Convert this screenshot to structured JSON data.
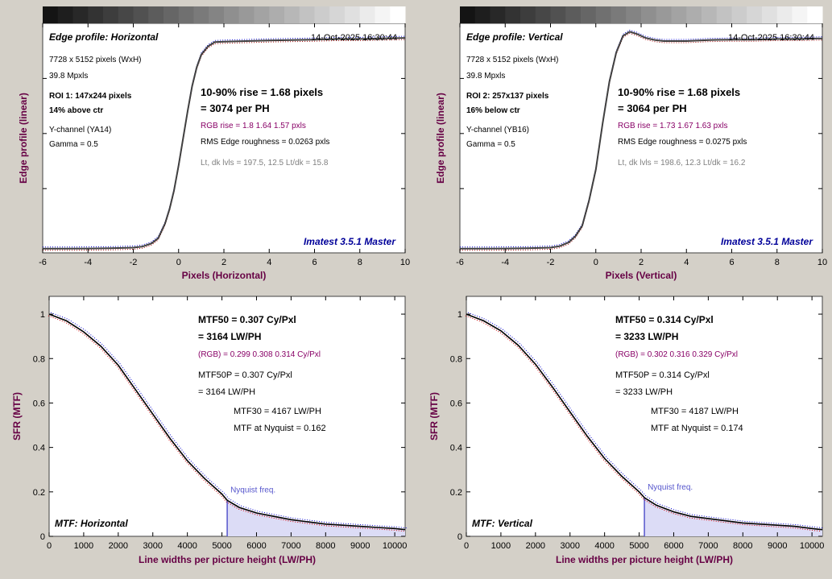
{
  "colors": {
    "background": "#d4d0c8",
    "plot_bg": "#ffffff",
    "axis_label": "#660044",
    "brand": "#000099",
    "rgb_text": "#880066",
    "gray_text": "#808080",
    "nyquist": "#5555cc",
    "fill": "#dcdcf6",
    "curve": "#000000"
  },
  "chart_data": [
    {
      "type": "line",
      "panel": "edge",
      "title": "Edge profile: Horizontal",
      "timestamp": "14-Oct-2025 16:30:44",
      "xlabel": "Pixels (Horizontal)",
      "ylabel": "Edge profile (linear)",
      "xlim": [
        -6,
        10
      ],
      "ylim": [
        0,
        1.1
      ],
      "xticks": [
        "-6",
        "-4",
        "-2",
        "0",
        "2",
        "4",
        "6",
        "8",
        "10"
      ],
      "grid": false,
      "info_lines": [
        "7728 x 5152 pixels (WxH)",
        "39.8 Mpxls"
      ],
      "roi_lines": [
        "ROI 1:  147x244 pixels",
        "14% above ctr"
      ],
      "channel_lines": [
        "Y-channel  (YA14)",
        "Gamma = 0.5"
      ],
      "rise_lines": [
        "10-90% rise = 1.68 pixels",
        "= 3074 per PH"
      ],
      "rgb_rise": "RGB rise = 1.8  1.64  1.57 pxls",
      "roughness": "RMS Edge roughness = 0.0263 pxls",
      "levels": "Lt, dk lvls = 197.5, 12.5   Lt/dk = 15.8",
      "brand": "Imatest 3.5.1 Master",
      "series": [
        {
          "x": [
            -6,
            -5,
            -4,
            -3,
            -2,
            -1.6,
            -1.2,
            -0.9,
            -0.6,
            -0.4,
            -0.2,
            0,
            0.2,
            0.4,
            0.6,
            0.8,
            1.0,
            1.3,
            1.6,
            2,
            3,
            4,
            5,
            6,
            7,
            8,
            9,
            10
          ],
          "y": [
            0.02,
            0.02,
            0.021,
            0.022,
            0.025,
            0.03,
            0.045,
            0.07,
            0.14,
            0.21,
            0.3,
            0.42,
            0.55,
            0.68,
            0.8,
            0.89,
            0.95,
            0.99,
            1.01,
            1.012,
            1.015,
            1.018,
            1.02,
            1.022,
            1.025,
            1.025,
            1.028,
            1.03
          ]
        }
      ]
    },
    {
      "type": "line",
      "panel": "edge",
      "title": "Edge profile: Vertical",
      "timestamp": "14-Oct-2025 16:30:44",
      "xlabel": "Pixels (Vertical)",
      "ylabel": "Edge profile (linear)",
      "xlim": [
        -6,
        10
      ],
      "ylim": [
        0,
        1.1
      ],
      "xticks": [
        "-6",
        "-4",
        "-2",
        "0",
        "2",
        "4",
        "6",
        "8",
        "10"
      ],
      "grid": false,
      "info_lines": [
        "7728 x 5152 pixels (WxH)",
        "39.8 Mpxls"
      ],
      "roi_lines": [
        "ROI 2:  257x137 pixels",
        "16% below ctr"
      ],
      "channel_lines": [
        "Y-channel  (YB16)",
        "Gamma = 0.5"
      ],
      "rise_lines": [
        "10-90% rise = 1.68 pixels",
        "= 3064 per PH"
      ],
      "rgb_rise": "RGB rise = 1.73  1.67  1.63 pxls",
      "roughness": "RMS Edge roughness = 0.0275 pxls",
      "levels": "Lt, dk lvls = 198.6, 12.3   Lt/dk = 16.2",
      "brand": "Imatest 3.5.1 Master",
      "series": [
        {
          "x": [
            -6,
            -5,
            -4,
            -3,
            -2,
            -1.6,
            -1.2,
            -0.9,
            -0.6,
            -0.3,
            0,
            0.3,
            0.6,
            0.9,
            1.2,
            1.5,
            1.8,
            2.2,
            2.6,
            3,
            4,
            5,
            6,
            7,
            8,
            9,
            10
          ],
          "y": [
            0.02,
            0.02,
            0.021,
            0.022,
            0.025,
            0.032,
            0.05,
            0.08,
            0.13,
            0.25,
            0.4,
            0.62,
            0.82,
            0.96,
            1.04,
            1.06,
            1.05,
            1.03,
            1.02,
            1.015,
            1.015,
            1.02,
            1.022,
            1.022,
            1.025,
            1.025,
            1.028
          ]
        }
      ]
    },
    {
      "type": "line",
      "panel": "mtf",
      "title": "MTF: Horizontal",
      "xlabel": "Line widths per picture height (LW/PH)",
      "ylabel": "SFR (MTF)",
      "xlim": [
        0,
        10300
      ],
      "ylim": [
        0,
        1.08
      ],
      "xticks": [
        "0",
        "1000",
        "2000",
        "3000",
        "4000",
        "5000",
        "6000",
        "7000",
        "8000",
        "9000",
        "10000"
      ],
      "yticks": [
        "0",
        "0.2",
        "0.4",
        "0.6",
        "0.8",
        "1"
      ],
      "grid": false,
      "mtf50_lines": [
        "MTF50 = 0.307 Cy/Pxl",
        "= 3164 LW/PH"
      ],
      "rgb_line": "(RGB) = 0.299  0.308  0.314 Cy/Pxl",
      "mtf50p_lines": [
        "MTF50P = 0.307 Cy/Pxl",
        "= 3164 LW/PH"
      ],
      "mtf30_lines": [
        "MTF30 = 4167 LW/PH",
        "MTF at Nyquist = 0.162"
      ],
      "nyquist_label": "Nyquist freq.",
      "nyquist_x": 5152,
      "series": [
        {
          "x": [
            0,
            500,
            1000,
            1500,
            2000,
            2500,
            3000,
            3500,
            4000,
            4500,
            5000,
            5152,
            5500,
            6000,
            6500,
            7000,
            7500,
            8000,
            8500,
            9000,
            9500,
            10000,
            10300
          ],
          "y": [
            1.0,
            0.97,
            0.92,
            0.855,
            0.77,
            0.66,
            0.55,
            0.44,
            0.34,
            0.26,
            0.19,
            0.162,
            0.13,
            0.105,
            0.09,
            0.075,
            0.065,
            0.055,
            0.05,
            0.045,
            0.04,
            0.035,
            0.03
          ]
        }
      ]
    },
    {
      "type": "line",
      "panel": "mtf",
      "title": "MTF: Vertical",
      "xlabel": "Line widths per picture height (LW/PH)",
      "ylabel": "SFR (MTF)",
      "xlim": [
        0,
        10300
      ],
      "ylim": [
        0,
        1.08
      ],
      "xticks": [
        "0",
        "1000",
        "2000",
        "3000",
        "4000",
        "5000",
        "6000",
        "7000",
        "8000",
        "9000",
        "10000"
      ],
      "yticks": [
        "0",
        "0.2",
        "0.4",
        "0.6",
        "0.8",
        "1"
      ],
      "grid": false,
      "mtf50_lines": [
        "MTF50 = 0.314 Cy/Pxl",
        "= 3233 LW/PH"
      ],
      "rgb_line": "(RGB) = 0.302  0.316  0.329 Cy/Pxl",
      "mtf50p_lines": [
        "MTF50P = 0.314 Cy/Pxl",
        "= 3233 LW/PH"
      ],
      "mtf30_lines": [
        "MTF30 = 4187 LW/PH",
        "MTF at Nyquist = 0.174"
      ],
      "nyquist_label": "Nyquist freq.",
      "nyquist_x": 5152,
      "series": [
        {
          "x": [
            0,
            500,
            1000,
            1500,
            2000,
            2500,
            3000,
            3500,
            4000,
            4500,
            5000,
            5152,
            5500,
            6000,
            6500,
            7000,
            7500,
            8000,
            8500,
            9000,
            9500,
            10000,
            10300
          ],
          "y": [
            1.0,
            0.97,
            0.925,
            0.86,
            0.775,
            0.67,
            0.56,
            0.45,
            0.35,
            0.27,
            0.2,
            0.174,
            0.14,
            0.11,
            0.09,
            0.08,
            0.07,
            0.06,
            0.055,
            0.05,
            0.045,
            0.035,
            0.03
          ]
        }
      ]
    }
  ]
}
